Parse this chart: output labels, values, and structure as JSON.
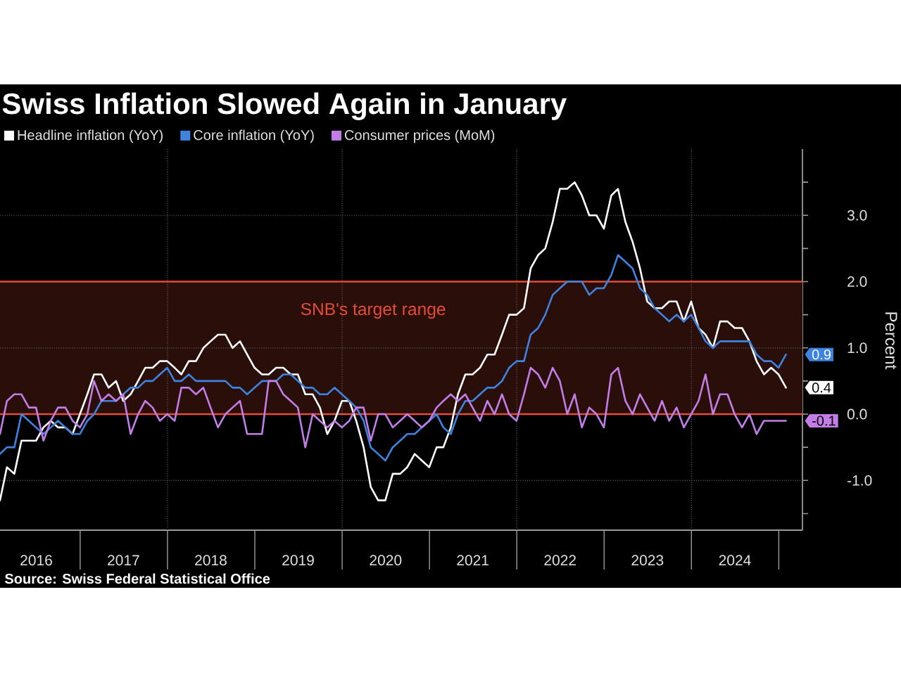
{
  "chart_data": {
    "type": "line",
    "title": "Swiss Inflation Slowed Again in January",
    "ylabel": "Percent",
    "annotations": [
      "Source: Swiss Federal Statistical Office"
    ],
    "legend": "top left",
    "grid": "y",
    "xlim": [
      "2016-01-31",
      "2025-04-10"
    ],
    "ylim": [
      -1.75,
      4.0
    ],
    "xticks": [
      {
        "value": "2016-07-01",
        "label": "2016"
      },
      {
        "value": "2017-01-01",
        "label": null
      },
      {
        "value": "2017-07-01",
        "label": "2017"
      },
      {
        "value": "2018-01-01",
        "label": null
      },
      {
        "value": "2018-07-01",
        "label": "2018"
      },
      {
        "value": "2019-01-01",
        "label": null
      },
      {
        "value": "2019-07-01",
        "label": "2019"
      },
      {
        "value": "2020-01-01",
        "label": null
      },
      {
        "value": "2020-07-01",
        "label": "2020"
      },
      {
        "value": "2021-01-01",
        "label": null
      },
      {
        "value": "2021-07-01",
        "label": "2021"
      },
      {
        "value": "2022-01-01",
        "label": null
      },
      {
        "value": "2022-07-01",
        "label": "2022"
      },
      {
        "value": "2023-01-01",
        "label": null
      },
      {
        "value": "2023-07-01",
        "label": "2023"
      },
      {
        "value": "2024-01-01",
        "label": null
      },
      {
        "value": "2024-07-01",
        "label": "2024"
      },
      {
        "value": "2025-01-01",
        "label": null
      }
    ],
    "yticks": [
      {
        "value": -1.5,
        "label": null
      },
      {
        "value": -1,
        "label": "-1.0"
      },
      {
        "value": -0.5,
        "label": null
      },
      {
        "value": 0,
        "label": "0.0"
      },
      {
        "value": 0.5,
        "label": null
      },
      {
        "value": 1,
        "label": "1.0"
      },
      {
        "value": 1.5,
        "label": null
      },
      {
        "value": 2,
        "label": "2.0"
      },
      {
        "value": 2.5,
        "label": null
      },
      {
        "value": 3,
        "label": "3.0"
      },
      {
        "value": 3.5,
        "label": null
      }
    ],
    "bands": [
      {
        "axis": "y",
        "from": 0,
        "to": 2,
        "label": "SNB's target range",
        "color": "#2a0e0a"
      }
    ],
    "ref_lines": [
      {
        "axis": "x",
        "value": "2018-01-01",
        "color": "#5e5e5e",
        "line_style": "dotted"
      },
      {
        "axis": "x",
        "value": "2020-01-01",
        "color": "#5e5e5e",
        "line_style": "dotted"
      },
      {
        "axis": "x",
        "value": "2022-01-01",
        "color": "#5e5e5e",
        "line_style": "dotted"
      },
      {
        "axis": "x",
        "value": "2024-01-01",
        "color": "#5e5e5e",
        "line_style": "dotted"
      }
    ],
    "x": [
      "2016-01-31",
      "2016-02-29",
      "2016-03-31",
      "2016-04-30",
      "2016-05-31",
      "2016-06-30",
      "2016-07-31",
      "2016-08-31",
      "2016-09-30",
      "2016-10-31",
      "2016-11-30",
      "2016-12-31",
      "2017-01-31",
      "2017-02-28",
      "2017-03-31",
      "2017-04-30",
      "2017-05-31",
      "2017-06-30",
      "2017-07-31",
      "2017-08-31",
      "2017-09-30",
      "2017-10-31",
      "2017-11-30",
      "2017-12-31",
      "2018-01-31",
      "2018-02-28",
      "2018-03-31",
      "2018-04-30",
      "2018-05-31",
      "2018-06-30",
      "2018-07-31",
      "2018-08-31",
      "2018-09-30",
      "2018-10-31",
      "2018-11-30",
      "2018-12-31",
      "2019-01-31",
      "2019-02-28",
      "2019-03-31",
      "2019-04-30",
      "2019-05-31",
      "2019-06-30",
      "2019-07-31",
      "2019-08-31",
      "2019-09-30",
      "2019-10-31",
      "2019-11-30",
      "2019-12-31",
      "2020-01-31",
      "2020-02-29",
      "2020-03-31",
      "2020-04-30",
      "2020-05-31",
      "2020-06-30",
      "2020-07-31",
      "2020-08-31",
      "2020-09-30",
      "2020-10-31",
      "2020-11-30",
      "2020-12-31",
      "2021-01-31",
      "2021-02-28",
      "2021-03-31",
      "2021-04-30",
      "2021-05-31",
      "2021-06-30",
      "2021-07-31",
      "2021-08-31",
      "2021-09-30",
      "2021-10-31",
      "2021-11-30",
      "2021-12-31",
      "2022-01-31",
      "2022-02-28",
      "2022-03-31",
      "2022-04-30",
      "2022-05-31",
      "2022-06-30",
      "2022-07-31",
      "2022-08-31",
      "2022-09-30",
      "2022-10-31",
      "2022-11-30",
      "2022-12-31",
      "2023-01-31",
      "2023-02-28",
      "2023-03-31",
      "2023-04-30",
      "2023-05-31",
      "2023-06-30",
      "2023-07-31",
      "2023-08-31",
      "2023-09-30",
      "2023-10-31",
      "2023-11-30",
      "2023-12-31",
      "2024-01-31",
      "2024-02-29",
      "2024-03-31",
      "2024-04-30",
      "2024-05-31",
      "2024-06-30",
      "2024-07-31",
      "2024-08-31",
      "2024-09-30",
      "2024-10-31",
      "2024-11-30",
      "2024-12-31",
      "2025-01-31"
    ],
    "series": [
      {
        "name": "Headline inflation (YoY)",
        "color": "#ffffff",
        "values": [
          -1.3,
          -0.8,
          -0.9,
          -0.4,
          -0.4,
          -0.4,
          -0.2,
          -0.1,
          -0.2,
          -0.2,
          -0.3,
          0.0,
          0.3,
          0.6,
          0.6,
          0.4,
          0.5,
          0.2,
          0.3,
          0.5,
          0.7,
          0.7,
          0.8,
          0.8,
          0.7,
          0.6,
          0.8,
          0.8,
          1.0,
          1.1,
          1.2,
          1.2,
          1.0,
          1.1,
          0.9,
          0.7,
          0.6,
          0.6,
          0.7,
          0.7,
          0.6,
          0.6,
          0.3,
          0.3,
          0.1,
          -0.3,
          -0.1,
          0.2,
          0.2,
          -0.1,
          -0.5,
          -1.1,
          -1.3,
          -1.3,
          -0.9,
          -0.9,
          -0.8,
          -0.6,
          -0.7,
          -0.8,
          -0.5,
          -0.5,
          -0.2,
          0.3,
          0.6,
          0.6,
          0.7,
          0.9,
          0.9,
          1.2,
          1.5,
          1.5,
          1.6,
          2.2,
          2.4,
          2.5,
          2.9,
          3.4,
          3.4,
          3.5,
          3.3,
          3.0,
          3.0,
          2.8,
          3.3,
          3.4,
          2.9,
          2.6,
          2.2,
          1.7,
          1.6,
          1.6,
          1.7,
          1.7,
          1.4,
          1.7,
          1.3,
          1.2,
          1.0,
          1.4,
          1.4,
          1.3,
          1.3,
          1.1,
          0.8,
          0.6,
          0.7,
          0.6,
          0.4
        ],
        "value_labels": [
          null,
          null,
          null,
          null,
          null,
          null,
          null,
          null,
          null,
          null,
          null,
          null,
          null,
          null,
          null,
          null,
          null,
          null,
          null,
          null,
          null,
          null,
          null,
          null,
          null,
          null,
          null,
          null,
          null,
          null,
          null,
          null,
          null,
          null,
          null,
          null,
          null,
          null,
          null,
          null,
          null,
          null,
          null,
          null,
          null,
          null,
          null,
          null,
          null,
          null,
          null,
          null,
          null,
          null,
          null,
          null,
          null,
          null,
          null,
          null,
          null,
          null,
          null,
          null,
          null,
          null,
          null,
          null,
          null,
          null,
          null,
          null,
          null,
          null,
          null,
          null,
          null,
          null,
          null,
          null,
          null,
          null,
          null,
          null,
          null,
          null,
          null,
          null,
          null,
          null,
          null,
          null,
          null,
          null,
          null,
          null,
          null,
          null,
          null,
          null,
          null,
          null,
          null,
          null,
          null,
          null,
          null,
          null,
          "0.4"
        ]
      },
      {
        "name": "Core inflation (YoY)",
        "color": "#3f83e0",
        "values": [
          -0.6,
          -0.5,
          -0.5,
          0.0,
          -0.1,
          -0.2,
          -0.3,
          -0.2,
          -0.1,
          -0.2,
          -0.3,
          -0.3,
          -0.1,
          0.0,
          0.2,
          0.2,
          0.2,
          0.3,
          0.4,
          0.4,
          0.5,
          0.5,
          0.6,
          0.7,
          0.5,
          0.5,
          0.6,
          0.5,
          0.5,
          0.5,
          0.5,
          0.5,
          0.4,
          0.4,
          0.3,
          0.4,
          0.5,
          0.5,
          0.5,
          0.6,
          0.6,
          0.5,
          0.4,
          0.4,
          0.3,
          0.3,
          0.4,
          0.3,
          0.2,
          0.1,
          -0.1,
          -0.5,
          -0.6,
          -0.7,
          -0.5,
          -0.4,
          -0.3,
          -0.3,
          -0.2,
          -0.1,
          0.0,
          -0.2,
          -0.3,
          0.0,
          0.2,
          0.2,
          0.3,
          0.4,
          0.4,
          0.5,
          0.7,
          0.8,
          0.8,
          1.2,
          1.3,
          1.5,
          1.8,
          1.9,
          2.0,
          2.0,
          2.0,
          1.8,
          1.9,
          1.9,
          2.1,
          2.4,
          2.3,
          2.2,
          1.9,
          1.8,
          1.6,
          1.5,
          1.4,
          1.5,
          1.4,
          1.5,
          1.3,
          1.1,
          1.0,
          1.1,
          1.1,
          1.1,
          1.1,
          1.1,
          0.9,
          0.8,
          0.8,
          0.7,
          0.9
        ],
        "value_labels": [
          null,
          null,
          null,
          null,
          null,
          null,
          null,
          null,
          null,
          null,
          null,
          null,
          null,
          null,
          null,
          null,
          null,
          null,
          null,
          null,
          null,
          null,
          null,
          null,
          null,
          null,
          null,
          null,
          null,
          null,
          null,
          null,
          null,
          null,
          null,
          null,
          null,
          null,
          null,
          null,
          null,
          null,
          null,
          null,
          null,
          null,
          null,
          null,
          null,
          null,
          null,
          null,
          null,
          null,
          null,
          null,
          null,
          null,
          null,
          null,
          null,
          null,
          null,
          null,
          null,
          null,
          null,
          null,
          null,
          null,
          null,
          null,
          null,
          null,
          null,
          null,
          null,
          null,
          null,
          null,
          null,
          null,
          null,
          null,
          null,
          null,
          null,
          null,
          null,
          null,
          null,
          null,
          null,
          null,
          null,
          null,
          null,
          null,
          null,
          null,
          null,
          null,
          null,
          null,
          null,
          null,
          null,
          null,
          "0.9"
        ]
      },
      {
        "name": "Consumer prices (MoM)",
        "color": "#c27ee6",
        "values": [
          -0.3,
          0.2,
          0.3,
          0.3,
          0.1,
          0.1,
          -0.4,
          -0.1,
          0.1,
          0.1,
          -0.1,
          -0.2,
          0.0,
          0.5,
          0.2,
          0.3,
          0.2,
          0.3,
          -0.3,
          0.0,
          0.2,
          0.1,
          -0.1,
          0.0,
          -0.1,
          0.4,
          0.4,
          0.3,
          0.4,
          0.1,
          -0.2,
          0.0,
          0.1,
          0.2,
          -0.3,
          -0.3,
          -0.3,
          0.5,
          0.5,
          0.3,
          0.2,
          0.1,
          -0.5,
          0.0,
          -0.1,
          -0.2,
          -0.1,
          -0.2,
          -0.1,
          0.1,
          0.1,
          -0.4,
          0.0,
          0.0,
          -0.2,
          -0.1,
          0.0,
          -0.1,
          -0.2,
          -0.1,
          0.1,
          0.2,
          0.3,
          0.2,
          0.3,
          0.1,
          -0.1,
          0.2,
          0.0,
          0.3,
          0.0,
          -0.1,
          0.3,
          0.7,
          0.6,
          0.4,
          0.7,
          0.5,
          0.0,
          0.3,
          -0.2,
          0.1,
          0.0,
          -0.2,
          0.6,
          0.7,
          0.2,
          0.0,
          0.3,
          0.1,
          -0.1,
          0.2,
          -0.1,
          0.1,
          -0.2,
          0.0,
          0.2,
          0.6,
          0.0,
          0.3,
          0.3,
          0.0,
          -0.2,
          0.0,
          -0.3,
          -0.1,
          -0.1,
          -0.1,
          -0.1
        ],
        "value_labels": [
          null,
          null,
          null,
          null,
          null,
          null,
          null,
          null,
          null,
          null,
          null,
          null,
          null,
          null,
          null,
          null,
          null,
          null,
          null,
          null,
          null,
          null,
          null,
          null,
          null,
          null,
          null,
          null,
          null,
          null,
          null,
          null,
          null,
          null,
          null,
          null,
          null,
          null,
          null,
          null,
          null,
          null,
          null,
          null,
          null,
          null,
          null,
          null,
          null,
          null,
          null,
          null,
          null,
          null,
          null,
          null,
          null,
          null,
          null,
          null,
          null,
          null,
          null,
          null,
          null,
          null,
          null,
          null,
          null,
          null,
          null,
          null,
          null,
          null,
          null,
          null,
          null,
          null,
          null,
          null,
          null,
          null,
          null,
          null,
          null,
          null,
          null,
          null,
          null,
          null,
          null,
          null,
          null,
          null,
          null,
          null,
          null,
          null,
          null,
          null,
          null,
          null,
          null,
          null,
          null,
          null,
          null,
          null,
          "-0.1"
        ]
      }
    ]
  }
}
